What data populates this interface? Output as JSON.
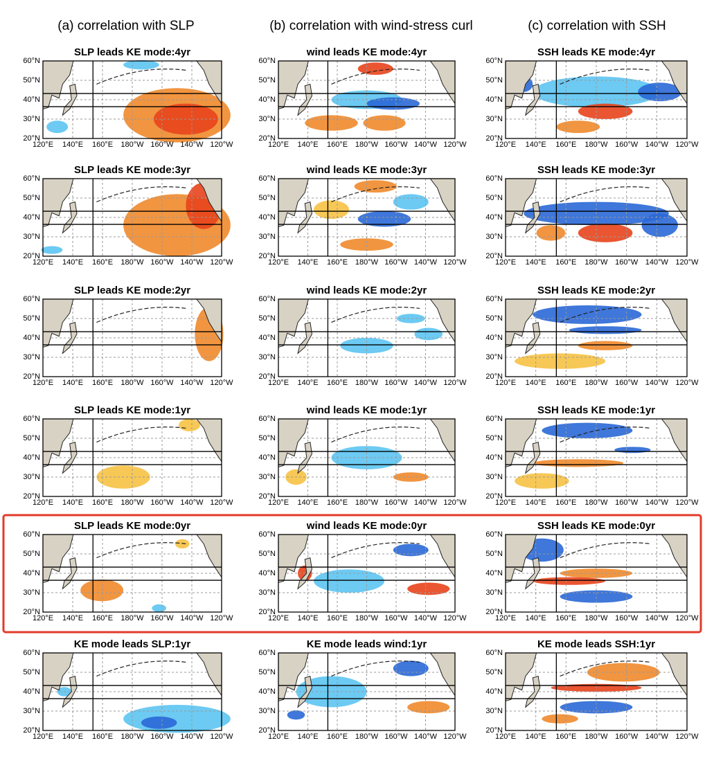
{
  "columns": [
    {
      "header": "(a) correlation with SLP",
      "panels": [
        {
          "title": "SLP leads KE mode:4yr"
        },
        {
          "title": "SLP leads KE mode:3yr"
        },
        {
          "title": "SLP leads KE mode:2yr"
        },
        {
          "title": "SLP leads KE mode:1yr"
        },
        {
          "title": "SLP leads KE mode:0yr"
        },
        {
          "title": "KE mode leads SLP:1yr"
        }
      ]
    },
    {
      "header": "(b) correlation with wind-stress curl",
      "panels": [
        {
          "title": "wind leads KE mode:4yr"
        },
        {
          "title": "wind leads KE mode:3yr"
        },
        {
          "title": "wind leads KE mode:2yr"
        },
        {
          "title": "wind leads KE mode:1yr"
        },
        {
          "title": "wind leads KE mode:0yr"
        },
        {
          "title": "KE mode leads wind:1yr"
        }
      ]
    },
    {
      "header": "(c) correlation with SSH",
      "panels": [
        {
          "title": "SSH leads KE mode:4yr"
        },
        {
          "title": "SSH leads KE mode:3yr"
        },
        {
          "title": "SSH leads KE mode:2yr"
        },
        {
          "title": "SSH leads KE mode:1yr"
        },
        {
          "title": "SSH leads KE mode:0yr"
        },
        {
          "title": "KE mode leads SSH:1yr"
        }
      ]
    }
  ],
  "lat_labels": [
    "60°N",
    "50°N",
    "40°N",
    "30°N",
    "20°N"
  ],
  "lon_labels": [
    "120°E",
    "140°E",
    "160°E",
    "180°W",
    "160°W",
    "140°W",
    "120°W"
  ]
}
